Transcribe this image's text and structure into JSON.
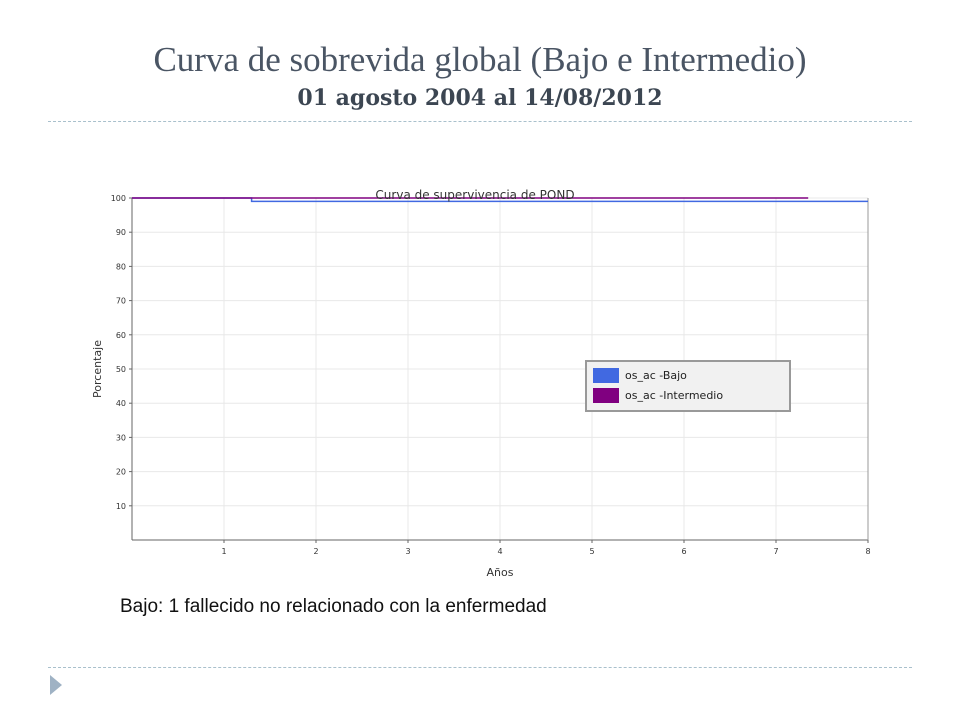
{
  "slide": {
    "title": "Curva de sobrevida global (Bajo e Intermedio)",
    "subtitle": "01 agosto 2004 al 14/08/2012",
    "footnote": "Bajo: 1 fallecido no relacionado con la enfermedad",
    "nav_icon": "triangle-right-icon"
  },
  "chart_data": {
    "type": "line",
    "title": "Curva de supervivencia de POND",
    "xlabel": "Años",
    "ylabel": "Porcentaje",
    "xlim": [
      0,
      8
    ],
    "ylim": [
      0,
      100
    ],
    "xticks": [
      1,
      2,
      3,
      4,
      5,
      6,
      7,
      8
    ],
    "yticks": [
      10,
      20,
      30,
      40,
      50,
      60,
      70,
      80,
      90,
      100
    ],
    "grid": true,
    "legend_position": "center-right",
    "series": [
      {
        "name": "os_ac -Bajo",
        "color": "#4169e1",
        "x": [
          0,
          1.3,
          1.3,
          8
        ],
        "y": [
          100,
          100,
          99,
          99
        ]
      },
      {
        "name": "os_ac -Intermedio",
        "color": "#800080",
        "x": [
          0,
          7.35
        ],
        "y": [
          100,
          100
        ]
      }
    ]
  }
}
